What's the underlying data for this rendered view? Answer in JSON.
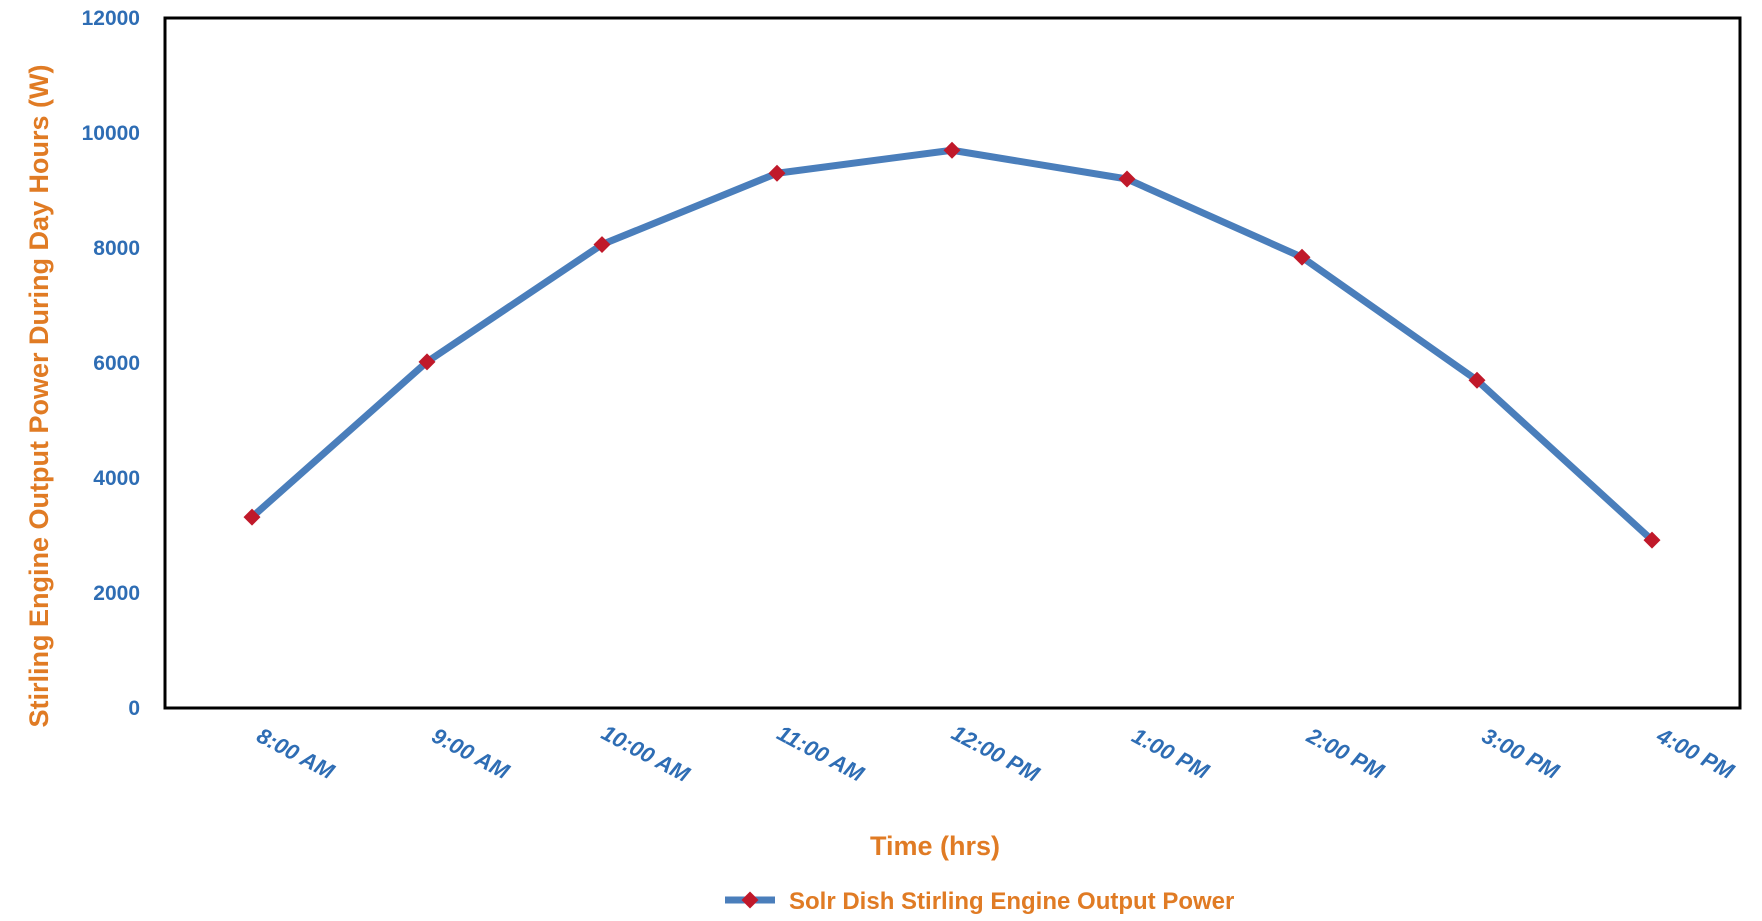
{
  "chart_data": {
    "type": "line",
    "categories": [
      "8:00 AM",
      "9:00 AM",
      "10:00 AM",
      "11:00 AM",
      "12:00 PM",
      "1:00 PM",
      "2:00 PM",
      "3:00 PM",
      "4:00 PM"
    ],
    "series": [
      {
        "name": "Solr Dish Stirling Engine Output Power",
        "values": [
          3320,
          6020,
          8060,
          9300,
          9700,
          9200,
          7840,
          5700,
          2920
        ]
      }
    ],
    "xlabel": "Time (hrs)",
    "ylabel": "Stirling Engine Output Power During Day Hours (W)",
    "ylim": [
      0,
      12000
    ],
    "yticks": [
      "0",
      "2000",
      "4000",
      "6000",
      "8000",
      "10000",
      "12000"
    ],
    "grid": false,
    "legend": "bottom-center",
    "colors": {
      "line": "#4a7ebb",
      "marker": "#c0192a",
      "tick_text": "#2e6db4",
      "title_text": "#e07b24",
      "frame": "#000000"
    }
  }
}
